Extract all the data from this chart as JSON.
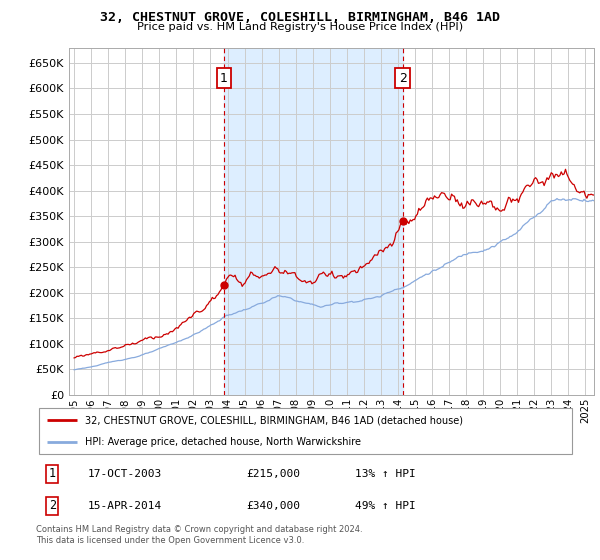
{
  "title": "32, CHESTNUT GROVE, COLESHILL, BIRMINGHAM, B46 1AD",
  "subtitle": "Price paid vs. HM Land Registry's House Price Index (HPI)",
  "ylim": [
    0,
    680000
  ],
  "yticks": [
    0,
    50000,
    100000,
    150000,
    200000,
    250000,
    300000,
    350000,
    400000,
    450000,
    500000,
    550000,
    600000,
    650000
  ],
  "xlim_start": 1994.7,
  "xlim_end": 2025.5,
  "purchase1_x": 2003.79,
  "purchase1_y": 215000,
  "purchase2_x": 2014.29,
  "purchase2_y": 340000,
  "shade_start": 2003.79,
  "shade_end": 2014.29,
  "red_color": "#cc0000",
  "blue_color": "#88aadd",
  "shade_color": "#ddeeff",
  "marker_box_color": "#cc0000",
  "grid_color": "#cccccc",
  "legend_line1": "32, CHESTNUT GROVE, COLESHILL, BIRMINGHAM, B46 1AD (detached house)",
  "legend_line2": "HPI: Average price, detached house, North Warwickshire",
  "ann1_num": "1",
  "ann1_date": "17-OCT-2003",
  "ann1_price": "£215,000",
  "ann1_hpi": "13% ↑ HPI",
  "ann2_num": "2",
  "ann2_date": "15-APR-2014",
  "ann2_price": "£340,000",
  "ann2_hpi": "49% ↑ HPI",
  "footer": "Contains HM Land Registry data © Crown copyright and database right 2024.\nThis data is licensed under the Open Government Licence v3.0."
}
